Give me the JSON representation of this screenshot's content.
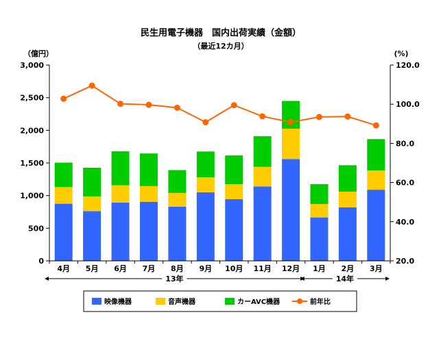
{
  "chart_data": {
    "type": "bar",
    "title": "民生用電子機器　国内出荷実績（金額）",
    "subtitle": "（最近12カ月）",
    "y_left_unit": "（億円）",
    "y_right_unit": "(%)",
    "categories": [
      "4月",
      "5月",
      "6月",
      "7月",
      "8月",
      "9月",
      "10月",
      "11月",
      "12月",
      "1月",
      "2月",
      "3月"
    ],
    "year_groups": [
      {
        "label": "13年",
        "from": 0,
        "to": 8
      },
      {
        "label": "14年",
        "from": 9,
        "to": 11
      }
    ],
    "stacked": true,
    "series": [
      {
        "name": "映像機器",
        "type": "bar",
        "axis": "left",
        "color": "#3366ff",
        "values": [
          875,
          762,
          893,
          905,
          830,
          1050,
          945,
          1140,
          1560,
          665,
          820,
          1090
        ]
      },
      {
        "name": "音声機器",
        "type": "bar",
        "axis": "left",
        "color": "#ffcc00",
        "values": [
          255,
          225,
          265,
          240,
          210,
          230,
          230,
          300,
          465,
          205,
          240,
          295
        ]
      },
      {
        "name": "カーAVC機器",
        "type": "bar",
        "axis": "left",
        "color": "#00cc00",
        "values": [
          375,
          440,
          520,
          500,
          350,
          395,
          440,
          470,
          425,
          305,
          405,
          480
        ]
      },
      {
        "name": "前年比",
        "type": "line",
        "axis": "right",
        "color": "#ff6600",
        "values": [
          102.8,
          109.5,
          100.2,
          99.7,
          98.2,
          90.8,
          99.5,
          93.8,
          90.8,
          93.5,
          93.7,
          89.2
        ]
      }
    ],
    "y_left": {
      "min": 0,
      "max": 3000,
      "ticks": [
        0,
        500,
        1000,
        1500,
        2000,
        2500,
        3000
      ],
      "tick_labels": [
        "0",
        "500",
        "1,000",
        "1,500",
        "2,000",
        "2,500",
        "3,000"
      ]
    },
    "y_right": {
      "min": 20,
      "max": 120,
      "ticks": [
        20,
        40,
        60,
        80,
        100,
        120
      ],
      "tick_labels": [
        "20.0",
        "40.0",
        "60.0",
        "80.0",
        "100.0",
        "120.0"
      ]
    },
    "grid": false,
    "legend_position": "bottom"
  }
}
